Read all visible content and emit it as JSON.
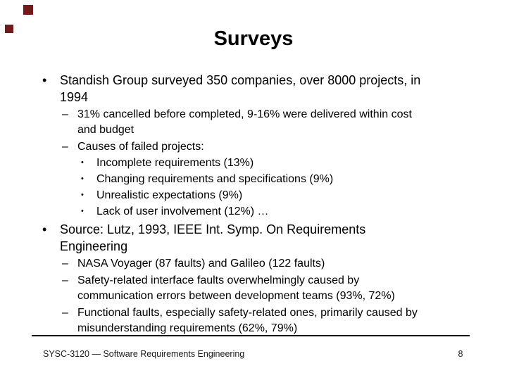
{
  "slide": {
    "title": "Surveys",
    "markers": {
      "l1": "•",
      "l2": "–",
      "l3": "•"
    },
    "content": {
      "items": [
        {
          "level": 1,
          "text": "Standish Group surveyed 350 companies, over 8000 projects, in\n1994"
        },
        {
          "level": 2,
          "text": "31% cancelled before completed, 9-16% were delivered within cost\nand budget"
        },
        {
          "level": 2,
          "text": "Causes of failed projects:"
        },
        {
          "level": 3,
          "text": "Incomplete requirements (13%)"
        },
        {
          "level": 3,
          "text": "Changing requirements and specifications (9%)"
        },
        {
          "level": 3,
          "text": "Unrealistic expectations (9%)"
        },
        {
          "level": 3,
          "text": "Lack of user involvement (12%) …"
        },
        {
          "level": 1,
          "text": "Source: Lutz, 1993, IEEE Int. Symp. On Requirements\nEngineering"
        },
        {
          "level": 2,
          "text": "NASA Voyager (87 faults) and Galileo (122 faults)"
        },
        {
          "level": 2,
          "text": "Safety-related interface faults overwhelmingly caused by\ncommunication errors between development teams (93%, 72%)"
        },
        {
          "level": 2,
          "text": "Functional faults, especially safety-related ones, primarily caused by\nmisunderstanding requirements (62%, 79%)"
        }
      ]
    },
    "footer": {
      "course": "SYSC-3120 — Software Requirements Engineering",
      "page": "8"
    },
    "colors": {
      "accent_square": "#701c1c",
      "text": "#000000",
      "divider": "#000000",
      "background": "#ffffff"
    }
  }
}
